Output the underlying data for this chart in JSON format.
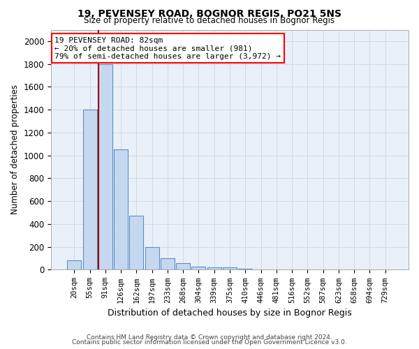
{
  "title1": "19, PEVENSEY ROAD, BOGNOR REGIS, PO21 5NS",
  "title2": "Size of property relative to detached houses in Bognor Regis",
  "xlabel": "Distribution of detached houses by size in Bognor Regis",
  "ylabel": "Number of detached properties",
  "bar_labels": [
    "20sqm",
    "55sqm",
    "91sqm",
    "126sqm",
    "162sqm",
    "197sqm",
    "233sqm",
    "268sqm",
    "304sqm",
    "339sqm",
    "375sqm",
    "410sqm",
    "446sqm",
    "481sqm",
    "516sqm",
    "552sqm",
    "587sqm",
    "623sqm",
    "658sqm",
    "694sqm",
    "729sqm"
  ],
  "bar_values": [
    80,
    1400,
    1800,
    1050,
    475,
    200,
    100,
    55,
    30,
    20,
    20,
    8,
    5,
    4,
    2,
    2,
    1,
    1,
    1,
    1,
    0
  ],
  "bar_color": "#c5d8f0",
  "bar_edge_color": "#5a8fc2",
  "ylim": [
    0,
    2100
  ],
  "yticks": [
    0,
    200,
    400,
    600,
    800,
    1000,
    1200,
    1400,
    1600,
    1800,
    2000
  ],
  "red_line_x": 1.55,
  "annotation_line1": "19 PEVENSEY ROAD: 82sqm",
  "annotation_line2": "← 20% of detached houses are smaller (981)",
  "annotation_line3": "79% of semi-detached houses are larger (3,972) →",
  "footer1": "Contains HM Land Registry data © Crown copyright and database right 2024.",
  "footer2": "Contains public sector information licensed under the Open Government Licence v3.0.",
  "background_color": "#ffffff",
  "grid_color": "#c8d8e8"
}
